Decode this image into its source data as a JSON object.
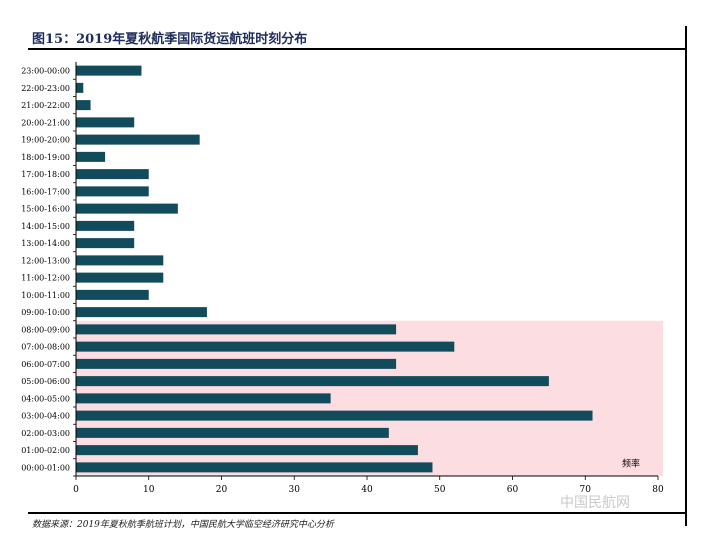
{
  "figure": {
    "title": "图15：2019年夏秋航季国际货运航班时刻分布",
    "source": "数据来源：2019年夏秋航季航班计划，中国民航大学临空经济研究中心分析",
    "watermark": "中国民航网"
  },
  "colors": {
    "bar": "#124b5c",
    "highlight": "#fbdde2",
    "axis": "#000000"
  },
  "chart_data": {
    "type": "bar",
    "orientation": "horizontal",
    "categories": [
      "00:00-01:00",
      "01:00-02:00",
      "02:00-03:00",
      "03:00-04:00",
      "04:00-05:00",
      "05:00-06:00",
      "06:00-07:00",
      "07:00-08:00",
      "08:00-09:00",
      "09:00-10:00",
      "10:00-11:00",
      "11:00-12:00",
      "12:00-13:00",
      "13:00-14:00",
      "14:00-15:00",
      "15:00-16:00",
      "16:00-17:00",
      "17:00-18:00",
      "18:00-19:00",
      "19:00-20:00",
      "20:00-21:00",
      "21:00-22:00",
      "22:00-23:00",
      "23:00-00:00"
    ],
    "values": [
      49,
      47,
      43,
      71,
      35,
      65,
      44,
      52,
      44,
      18,
      10,
      12,
      12,
      8,
      8,
      14,
      10,
      10,
      4,
      17,
      8,
      2,
      1,
      9
    ],
    "highlight_categories": [
      "00:00-01:00",
      "01:00-02:00",
      "02:00-03:00",
      "03:00-04:00",
      "04:00-05:00",
      "05:00-06:00",
      "06:00-07:00",
      "07:00-08:00",
      "08:00-09:00"
    ],
    "xlim": [
      0,
      80
    ],
    "xticks": [
      0,
      10,
      20,
      30,
      40,
      50,
      60,
      70,
      80
    ],
    "annotation": "频率",
    "grid": false
  }
}
